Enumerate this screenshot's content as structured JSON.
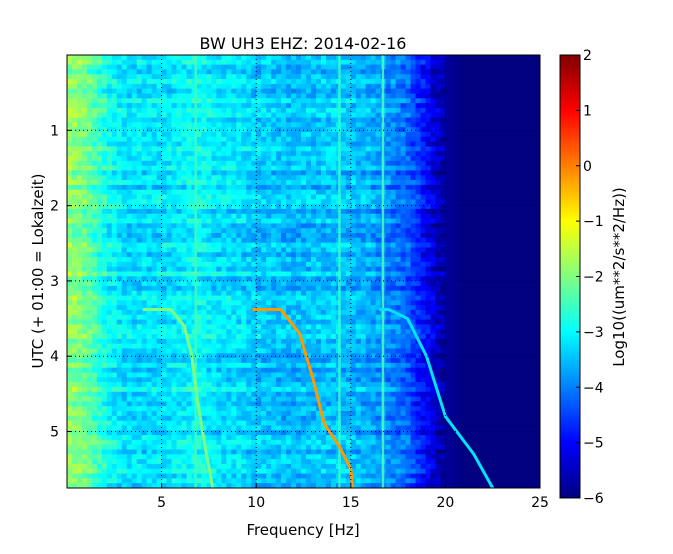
{
  "chart_data": {
    "type": "heatmap",
    "title": "BW UH3 EHZ: 2014-02-16",
    "xlabel": "Frequency [Hz]",
    "ylabel": "UTC (+ 01:00 = Lokalzeit)",
    "colorbar_label": "Log10((um**2/s**2/Hz))",
    "xlim": [
      0,
      25
    ],
    "ylim": [
      5.75,
      0
    ],
    "x_ticks": [
      5,
      10,
      15,
      20,
      25
    ],
    "y_ticks": [
      1,
      2,
      3,
      4,
      5
    ],
    "colorbar_range": [
      -6,
      2
    ],
    "colorbar_ticks": [
      2,
      1,
      0,
      -1,
      -2,
      -3,
      -4,
      -5,
      -6
    ],
    "colormap": "jet",
    "grid": true,
    "background_profile": {
      "frequency_hz": [
        0,
        1,
        2,
        3,
        4,
        5,
        6,
        7,
        8,
        9,
        10,
        12,
        14,
        16,
        17,
        18,
        18.5,
        19,
        19.5,
        20,
        21,
        22,
        25
      ],
      "log10_psd": [
        -1.8,
        -2.1,
        -2.8,
        -3.2,
        -3.2,
        -3.2,
        -3.1,
        -2.9,
        -3.2,
        -3.2,
        -3.4,
        -3.5,
        -3.4,
        -3.6,
        -3.9,
        -4.2,
        -4.6,
        -5.0,
        -5.4,
        -5.8,
        -6.0,
        -6.0,
        -6.0
      ]
    },
    "spectral_lines": [
      {
        "frequency_hz": 6.8,
        "log10_psd": -2.5
      },
      {
        "frequency_hz": 14.4,
        "log10_psd": -2.6
      },
      {
        "frequency_hz": 16.7,
        "log10_psd": -2.4
      }
    ],
    "series": [
      {
        "points": [
          [
            4.0,
            3.38
          ],
          [
            5.5,
            3.38
          ],
          [
            6.2,
            3.6
          ],
          [
            6.6,
            4.0
          ],
          [
            6.9,
            4.6
          ],
          [
            7.3,
            5.2
          ],
          [
            7.7,
            5.75
          ]
        ],
        "log10_psd": -2.0
      },
      {
        "points": [
          [
            9.8,
            3.38
          ],
          [
            11.3,
            3.38
          ],
          [
            12.3,
            3.7
          ],
          [
            13.0,
            4.3
          ],
          [
            13.6,
            4.9
          ],
          [
            14.4,
            5.2
          ],
          [
            15.0,
            5.5
          ],
          [
            15.1,
            5.75
          ]
        ],
        "log10_psd": -0.2
      },
      {
        "points": [
          [
            16.5,
            3.38
          ],
          [
            17.0,
            3.38
          ],
          [
            18.0,
            3.5
          ],
          [
            19.0,
            4.0
          ],
          [
            20.0,
            4.8
          ],
          [
            21.5,
            5.3
          ],
          [
            22.5,
            5.75
          ]
        ],
        "log10_psd": -3.2
      }
    ]
  }
}
